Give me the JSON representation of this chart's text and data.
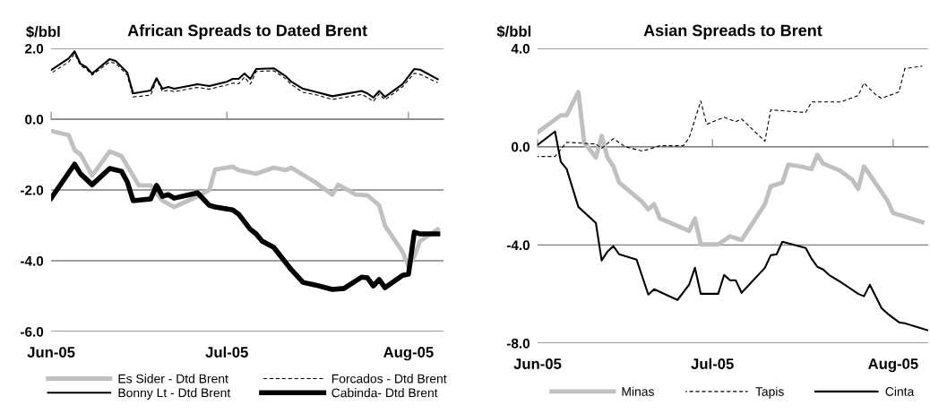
{
  "chart_data": [
    {
      "type": "line",
      "title": "African Spreads to Dated Brent",
      "ylabel": "$/bbl",
      "legend": "bottom",
      "grid": "y",
      "xlim": [
        "2005-06-01",
        "2005-08-07"
      ],
      "xticks": [
        {
          "value": "2005-06-01",
          "label": "Jun-05"
        },
        {
          "value": "2005-07-01",
          "label": "Jul-05"
        },
        {
          "value": "2005-08-01",
          "label": "Aug-05"
        }
      ],
      "ylim": [
        -6,
        2
      ],
      "yticks": [
        {
          "value": -6,
          "label": "-6.0"
        },
        {
          "value": -4,
          "label": "-4.0"
        },
        {
          "value": -2,
          "label": "-2.0"
        },
        {
          "value": 0,
          "label": "0.0"
        },
        {
          "value": 2,
          "label": "2.0"
        }
      ],
      "series": [
        {
          "name": "Es Sider - Dtd Brent",
          "color": "#c0c0c0",
          "line_style": "solid",
          "x": [
            "2005-06-01",
            "2005-06-04",
            "2005-06-05",
            "2005-06-06",
            "2005-06-08",
            "2005-06-11",
            "2005-06-13",
            "2005-06-16",
            "2005-06-18",
            "2005-06-19",
            "2005-06-20",
            "2005-06-22",
            "2005-06-26",
            "2005-06-28",
            "2005-06-29",
            "2005-07-02",
            "2005-07-03",
            "2005-07-06",
            "2005-07-09",
            "2005-07-11",
            "2005-07-12",
            "2005-07-16",
            "2005-07-19",
            "2005-07-20",
            "2005-07-23",
            "2005-07-25",
            "2005-07-27",
            "2005-07-28",
            "2005-07-31",
            "2005-08-01",
            "2005-08-02",
            "2005-08-03",
            "2005-08-06"
          ],
          "values": [
            -0.33,
            -0.45,
            -0.87,
            -0.99,
            -1.59,
            -0.91,
            -1.04,
            -1.87,
            -1.87,
            -2.1,
            -2.3,
            -2.48,
            -2.18,
            -2.0,
            -1.42,
            -1.34,
            -1.44,
            -1.54,
            -1.37,
            -1.44,
            -1.37,
            -1.77,
            -2.13,
            -1.85,
            -2.13,
            -2.15,
            -2.43,
            -3.01,
            -3.75,
            -4.15,
            -3.87,
            -3.44,
            -3.11
          ]
        },
        {
          "name": "Forcados - Dtd Brent",
          "color": "#000000",
          "line_style": "dashed",
          "x": [
            "2005-06-01",
            "2005-06-04",
            "2005-06-05",
            "2005-06-06",
            "2005-06-07",
            "2005-06-08",
            "2005-06-11",
            "2005-06-12",
            "2005-06-14",
            "2005-06-15",
            "2005-06-18",
            "2005-06-19",
            "2005-06-20",
            "2005-06-21",
            "2005-06-22",
            "2005-06-26",
            "2005-06-28",
            "2005-07-01",
            "2005-07-02",
            "2005-07-03",
            "2005-07-04",
            "2005-07-05",
            "2005-07-06",
            "2005-07-09",
            "2005-07-11",
            "2005-07-12",
            "2005-07-14",
            "2005-07-16",
            "2005-07-19",
            "2005-07-24",
            "2005-07-25",
            "2005-07-26",
            "2005-07-27",
            "2005-07-28",
            "2005-07-31",
            "2005-08-02",
            "2005-08-03",
            "2005-08-06"
          ],
          "values": [
            1.3,
            1.62,
            1.85,
            1.52,
            1.42,
            1.25,
            1.62,
            1.58,
            1.25,
            0.63,
            0.68,
            1.12,
            0.78,
            0.82,
            0.78,
            0.9,
            0.85,
            0.97,
            1.02,
            1.0,
            1.19,
            0.99,
            1.35,
            1.37,
            1.15,
            0.98,
            0.76,
            0.7,
            0.56,
            0.7,
            0.62,
            0.5,
            0.72,
            0.55,
            0.92,
            1.3,
            1.27,
            1.03
          ]
        },
        {
          "name": "Bonny Lt - Dtd Brent",
          "color": "#000000",
          "line_style": "solid",
          "x": [
            "2005-06-01",
            "2005-06-04",
            "2005-06-05",
            "2005-06-06",
            "2005-06-07",
            "2005-06-08",
            "2005-06-11",
            "2005-06-12",
            "2005-06-14",
            "2005-06-15",
            "2005-06-18",
            "2005-06-19",
            "2005-06-20",
            "2005-06-21",
            "2005-06-22",
            "2005-06-26",
            "2005-06-28",
            "2005-07-01",
            "2005-07-02",
            "2005-07-03",
            "2005-07-04",
            "2005-07-05",
            "2005-07-06",
            "2005-07-09",
            "2005-07-11",
            "2005-07-12",
            "2005-07-14",
            "2005-07-16",
            "2005-07-19",
            "2005-07-24",
            "2005-07-25",
            "2005-07-26",
            "2005-07-27",
            "2005-07-28",
            "2005-07-31",
            "2005-08-02",
            "2005-08-03",
            "2005-08-06"
          ],
          "values": [
            1.39,
            1.72,
            1.92,
            1.57,
            1.47,
            1.29,
            1.7,
            1.65,
            1.32,
            0.73,
            0.81,
            1.16,
            0.86,
            0.91,
            0.86,
            0.99,
            0.94,
            1.06,
            1.14,
            1.14,
            1.29,
            1.14,
            1.42,
            1.44,
            1.22,
            1.06,
            0.86,
            0.78,
            0.65,
            0.8,
            0.73,
            0.61,
            0.8,
            0.63,
            0.99,
            1.42,
            1.4,
            1.13
          ]
        },
        {
          "name": "Cabinda- Dtd Brent",
          "color": "#000000",
          "line_style": "solid",
          "x": [
            "2005-06-01",
            "2005-06-05",
            "2005-06-06",
            "2005-06-08",
            "2005-06-11",
            "2005-06-13",
            "2005-06-14",
            "2005-06-15",
            "2005-06-18",
            "2005-06-19",
            "2005-06-20",
            "2005-06-21",
            "2005-06-22",
            "2005-06-26",
            "2005-06-28",
            "2005-06-29",
            "2005-07-02",
            "2005-07-03",
            "2005-07-05",
            "2005-07-06",
            "2005-07-07",
            "2005-07-09",
            "2005-07-12",
            "2005-07-14",
            "2005-07-16",
            "2005-07-19",
            "2005-07-21",
            "2005-07-24",
            "2005-07-25",
            "2005-07-26",
            "2005-07-27",
            "2005-07-28",
            "2005-07-31",
            "2005-08-01",
            "2005-08-02",
            "2005-08-03",
            "2005-08-06"
          ],
          "values": [
            -2.23,
            -1.27,
            -1.54,
            -1.85,
            -1.39,
            -1.47,
            -1.77,
            -2.3,
            -2.25,
            -1.87,
            -2.18,
            -2.13,
            -2.23,
            -2.08,
            -2.43,
            -2.48,
            -2.56,
            -2.68,
            -3.11,
            -3.24,
            -3.44,
            -3.62,
            -4.25,
            -4.61,
            -4.68,
            -4.81,
            -4.78,
            -4.46,
            -4.48,
            -4.71,
            -4.53,
            -4.76,
            -4.41,
            -4.38,
            -3.19,
            -3.24,
            -3.24
          ]
        }
      ]
    },
    {
      "type": "line",
      "title": "Asian Spreads to Brent",
      "ylabel": "$/bbl",
      "legend": "bottom",
      "grid": "y",
      "xlim": [
        "2005-06-01",
        "2005-08-07"
      ],
      "xticks": [
        {
          "value": "2005-06-01",
          "label": "Jun-05"
        },
        {
          "value": "2005-07-01",
          "label": "Jul-05"
        },
        {
          "value": "2005-08-01",
          "label": "Aug-05"
        }
      ],
      "ylim": [
        -8,
        4
      ],
      "yticks": [
        {
          "value": -8,
          "label": "-8.0"
        },
        {
          "value": -4,
          "label": "-4.0"
        },
        {
          "value": 0,
          "label": "0.0"
        },
        {
          "value": 4,
          "label": "4.0"
        }
      ],
      "series": [
        {
          "name": "Minas",
          "color": "#c0c0c0",
          "line_style": "solid",
          "x": [
            "2005-06-01",
            "2005-06-05",
            "2005-06-06",
            "2005-06-08",
            "2005-06-09",
            "2005-06-11",
            "2005-06-12",
            "2005-06-13",
            "2005-06-14",
            "2005-06-15",
            "2005-06-19",
            "2005-06-20",
            "2005-06-21",
            "2005-06-22",
            "2005-06-27",
            "2005-06-28",
            "2005-06-29",
            "2005-07-02",
            "2005-07-04",
            "2005-07-06",
            "2005-07-10",
            "2005-07-11",
            "2005-07-13",
            "2005-07-14",
            "2005-07-16",
            "2005-07-18",
            "2005-07-19",
            "2005-07-20",
            "2005-07-23",
            "2005-07-25",
            "2005-07-26",
            "2005-07-27",
            "2005-07-31",
            "2005-08-01",
            "2005-08-06"
          ],
          "values": [
            0.58,
            1.28,
            1.28,
            2.23,
            0.18,
            -0.44,
            0.44,
            -0.44,
            -0.8,
            -1.46,
            -2.26,
            -2.55,
            -2.34,
            -2.92,
            -3.43,
            -2.92,
            -3.98,
            -3.98,
            -3.65,
            -3.8,
            -2.34,
            -1.61,
            -1.46,
            -0.73,
            -0.8,
            -0.91,
            -0.33,
            -0.69,
            -0.99,
            -1.35,
            -1.72,
            -0.8,
            -2.19,
            -2.7,
            -3.07
          ]
        },
        {
          "name": "Tapis",
          "color": "#000000",
          "line_style": "dashed",
          "x": [
            "2005-06-01",
            "2005-06-04",
            "2005-06-06",
            "2005-06-11",
            "2005-06-12",
            "2005-06-14",
            "2005-06-16",
            "2005-06-19",
            "2005-06-22",
            "2005-06-26",
            "2005-06-27",
            "2005-06-29",
            "2005-06-30",
            "2005-07-03",
            "2005-07-05",
            "2005-07-06",
            "2005-07-10",
            "2005-07-11",
            "2005-07-17",
            "2005-07-18",
            "2005-07-23",
            "2005-07-26",
            "2005-07-27",
            "2005-07-29",
            "2005-07-30",
            "2005-08-02",
            "2005-08-03",
            "2005-08-06"
          ],
          "values": [
            -0.4,
            -0.4,
            0.18,
            0.11,
            -0.07,
            0.33,
            0.0,
            -0.18,
            0.04,
            0.04,
            0.36,
            1.86,
            0.91,
            1.2,
            1.02,
            1.13,
            0.22,
            1.5,
            1.39,
            1.82,
            1.82,
            2.08,
            2.59,
            2.12,
            1.97,
            2.23,
            3.18,
            3.28
          ]
        },
        {
          "name": "Cinta",
          "color": "#000000",
          "line_style": "solid",
          "x": [
            "2005-06-01",
            "2005-06-04",
            "2005-06-05",
            "2005-06-06",
            "2005-06-08",
            "2005-06-11",
            "2005-06-12",
            "2005-06-13",
            "2005-06-14",
            "2005-06-15",
            "2005-06-18",
            "2005-06-20",
            "2005-06-21",
            "2005-06-25",
            "2005-06-27",
            "2005-06-28",
            "2005-06-29",
            "2005-07-02",
            "2005-07-03",
            "2005-07-04",
            "2005-07-05",
            "2005-07-06",
            "2005-07-10",
            "2005-07-11",
            "2005-07-12",
            "2005-07-13",
            "2005-07-17",
            "2005-07-18",
            "2005-07-19",
            "2005-07-20",
            "2005-07-21",
            "2005-07-23",
            "2005-07-26",
            "2005-07-27",
            "2005-07-28",
            "2005-07-30",
            "2005-07-31",
            "2005-08-02",
            "2005-08-03",
            "2005-08-07"
          ],
          "values": [
            0.07,
            0.62,
            -0.62,
            -0.91,
            -2.45,
            -3.1,
            -4.63,
            -4.27,
            -4.05,
            -4.38,
            -4.6,
            -6.02,
            -5.8,
            -6.24,
            -5.62,
            -4.93,
            -5.99,
            -5.99,
            -5.22,
            -5.44,
            -5.44,
            -5.95,
            -4.93,
            -4.42,
            -4.38,
            -3.87,
            -4.12,
            -4.56,
            -4.89,
            -5.0,
            -5.22,
            -5.51,
            -5.99,
            -6.09,
            -5.62,
            -6.57,
            -6.79,
            -7.15,
            -7.19,
            -7.48
          ]
        }
      ]
    }
  ]
}
